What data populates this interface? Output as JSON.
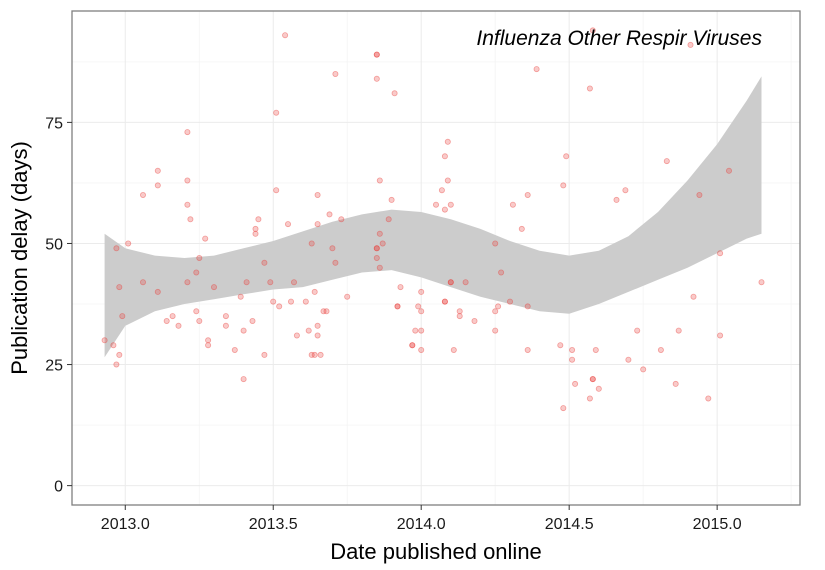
{
  "chart_data": {
    "type": "scatter",
    "title": "",
    "annotation": "Influenza Other Respir Viruses",
    "xlabel": "Date published online",
    "ylabel": "Publication delay (days)",
    "xlim": [
      2012.82,
      2015.28
    ],
    "ylim": [
      -4,
      98
    ],
    "xticks": [
      2013.0,
      2013.5,
      2014.0,
      2014.5,
      2015.0
    ],
    "xtick_labels": [
      "2013.0",
      "2013.5",
      "2014.0",
      "2014.5",
      "2015.0"
    ],
    "yticks": [
      0,
      25,
      50,
      75
    ],
    "ytick_labels": [
      "0",
      "25",
      "50",
      "75"
    ],
    "grid": true,
    "colors": {
      "points": "#e8413c",
      "ribbon": "#cccccc",
      "grid": "#ebebeb",
      "border": "#7f7f7f"
    },
    "points": [
      [
        2012.93,
        30
      ],
      [
        2012.96,
        29
      ],
      [
        2012.97,
        49
      ],
      [
        2012.97,
        25
      ],
      [
        2012.98,
        27
      ],
      [
        2012.98,
        41
      ],
      [
        2012.99,
        35
      ],
      [
        2013.01,
        50
      ],
      [
        2013.06,
        60
      ],
      [
        2013.06,
        42
      ],
      [
        2013.11,
        65
      ],
      [
        2013.11,
        62
      ],
      [
        2013.11,
        40
      ],
      [
        2013.14,
        34
      ],
      [
        2013.16,
        35
      ],
      [
        2013.18,
        33
      ],
      [
        2013.21,
        73
      ],
      [
        2013.21,
        63
      ],
      [
        2013.21,
        58
      ],
      [
        2013.22,
        55
      ],
      [
        2013.21,
        42
      ],
      [
        2013.24,
        44
      ],
      [
        2013.24,
        36
      ],
      [
        2013.25,
        47
      ],
      [
        2013.25,
        34
      ],
      [
        2013.27,
        51
      ],
      [
        2013.28,
        30
      ],
      [
        2013.28,
        29
      ],
      [
        2013.3,
        41
      ],
      [
        2013.34,
        35
      ],
      [
        2013.34,
        33
      ],
      [
        2013.37,
        28
      ],
      [
        2013.39,
        39
      ],
      [
        2013.4,
        32
      ],
      [
        2013.4,
        22
      ],
      [
        2013.41,
        42
      ],
      [
        2013.43,
        34
      ],
      [
        2013.44,
        52
      ],
      [
        2013.44,
        53
      ],
      [
        2013.45,
        55
      ],
      [
        2013.47,
        46
      ],
      [
        2013.47,
        27
      ],
      [
        2013.49,
        42
      ],
      [
        2013.5,
        38
      ],
      [
        2013.51,
        77
      ],
      [
        2013.51,
        61
      ],
      [
        2013.52,
        37
      ],
      [
        2013.54,
        93
      ],
      [
        2013.55,
        54
      ],
      [
        2013.56,
        38
      ],
      [
        2013.57,
        42
      ],
      [
        2013.58,
        31
      ],
      [
        2013.61,
        38
      ],
      [
        2013.62,
        32
      ],
      [
        2013.63,
        50
      ],
      [
        2013.63,
        27
      ],
      [
        2013.64,
        27
      ],
      [
        2013.64,
        40
      ],
      [
        2013.65,
        60
      ],
      [
        2013.65,
        54
      ],
      [
        2013.65,
        33
      ],
      [
        2013.65,
        31
      ],
      [
        2013.66,
        27
      ],
      [
        2013.67,
        36
      ],
      [
        2013.68,
        36
      ],
      [
        2013.69,
        56
      ],
      [
        2013.7,
        49
      ],
      [
        2013.71,
        85
      ],
      [
        2013.71,
        46
      ],
      [
        2013.73,
        55
      ],
      [
        2013.75,
        39
      ],
      [
        2013.85,
        89
      ],
      [
        2013.85,
        89
      ],
      [
        2013.85,
        84
      ],
      [
        2013.85,
        49
      ],
      [
        2013.85,
        49
      ],
      [
        2013.86,
        63
      ],
      [
        2013.86,
        52
      ],
      [
        2013.85,
        47
      ],
      [
        2013.86,
        45
      ],
      [
        2013.87,
        50
      ],
      [
        2013.89,
        55
      ],
      [
        2013.9,
        59
      ],
      [
        2013.91,
        81
      ],
      [
        2013.92,
        37
      ],
      [
        2013.92,
        37
      ],
      [
        2013.93,
        41
      ],
      [
        2013.97,
        29
      ],
      [
        2013.97,
        29
      ],
      [
        2013.98,
        32
      ],
      [
        2013.99,
        37
      ],
      [
        2014.0,
        36
      ],
      [
        2014.0,
        32
      ],
      [
        2014.0,
        28
      ],
      [
        2014.0,
        40
      ],
      [
        2014.05,
        58
      ],
      [
        2014.07,
        61
      ],
      [
        2014.08,
        57
      ],
      [
        2014.08,
        68
      ],
      [
        2014.08,
        38
      ],
      [
        2014.08,
        38
      ],
      [
        2014.09,
        71
      ],
      [
        2014.09,
        63
      ],
      [
        2014.1,
        58
      ],
      [
        2014.1,
        42
      ],
      [
        2014.1,
        42
      ],
      [
        2014.11,
        28
      ],
      [
        2014.13,
        36
      ],
      [
        2014.13,
        35
      ],
      [
        2014.15,
        42
      ],
      [
        2014.18,
        34
      ],
      [
        2014.25,
        50
      ],
      [
        2014.25,
        36
      ],
      [
        2014.25,
        32
      ],
      [
        2014.26,
        37
      ],
      [
        2014.27,
        44
      ],
      [
        2014.3,
        38
      ],
      [
        2014.31,
        58
      ],
      [
        2014.34,
        53
      ],
      [
        2014.36,
        60
      ],
      [
        2014.36,
        37
      ],
      [
        2014.36,
        28
      ],
      [
        2014.39,
        86
      ],
      [
        2014.47,
        29
      ],
      [
        2014.48,
        62
      ],
      [
        2014.48,
        16
      ],
      [
        2014.49,
        68
      ],
      [
        2014.51,
        28
      ],
      [
        2014.51,
        26
      ],
      [
        2014.52,
        21
      ],
      [
        2014.57,
        18
      ],
      [
        2014.57,
        82
      ],
      [
        2014.58,
        94
      ],
      [
        2014.58,
        22
      ],
      [
        2014.58,
        22
      ],
      [
        2014.59,
        28
      ],
      [
        2014.6,
        20
      ],
      [
        2014.66,
        59
      ],
      [
        2014.69,
        61
      ],
      [
        2014.7,
        26
      ],
      [
        2014.73,
        32
      ],
      [
        2014.75,
        24
      ],
      [
        2014.81,
        28
      ],
      [
        2014.83,
        67
      ],
      [
        2014.86,
        21
      ],
      [
        2014.87,
        32
      ],
      [
        2014.91,
        91
      ],
      [
        2014.92,
        39
      ],
      [
        2014.94,
        60
      ],
      [
        2014.97,
        18
      ],
      [
        2015.01,
        48
      ],
      [
        2015.01,
        31
      ],
      [
        2015.04,
        65
      ],
      [
        2015.15,
        42
      ]
    ],
    "ribbon": {
      "x": [
        2012.93,
        2013.0,
        2013.1,
        2013.2,
        2013.3,
        2013.4,
        2013.5,
        2013.6,
        2013.7,
        2013.8,
        2013.9,
        2014.0,
        2014.1,
        2014.2,
        2014.3,
        2014.4,
        2014.5,
        2014.6,
        2014.7,
        2014.8,
        2014.9,
        2015.0,
        2015.1,
        2015.15
      ],
      "upper": [
        52,
        49,
        47.5,
        47,
        47.5,
        49,
        50.5,
        52.5,
        54.5,
        56,
        57,
        56.5,
        55,
        53,
        50.5,
        48.5,
        47.5,
        48.5,
        51.5,
        56.5,
        63,
        70.5,
        79.5,
        84.5
      ],
      "lower": [
        26.5,
        33,
        36,
        37.5,
        38.5,
        39.5,
        40.5,
        41,
        42.5,
        44,
        44.5,
        43,
        41,
        39,
        37.5,
        36,
        35.5,
        37.5,
        40,
        42.5,
        45,
        48,
        51,
        52
      ]
    }
  }
}
